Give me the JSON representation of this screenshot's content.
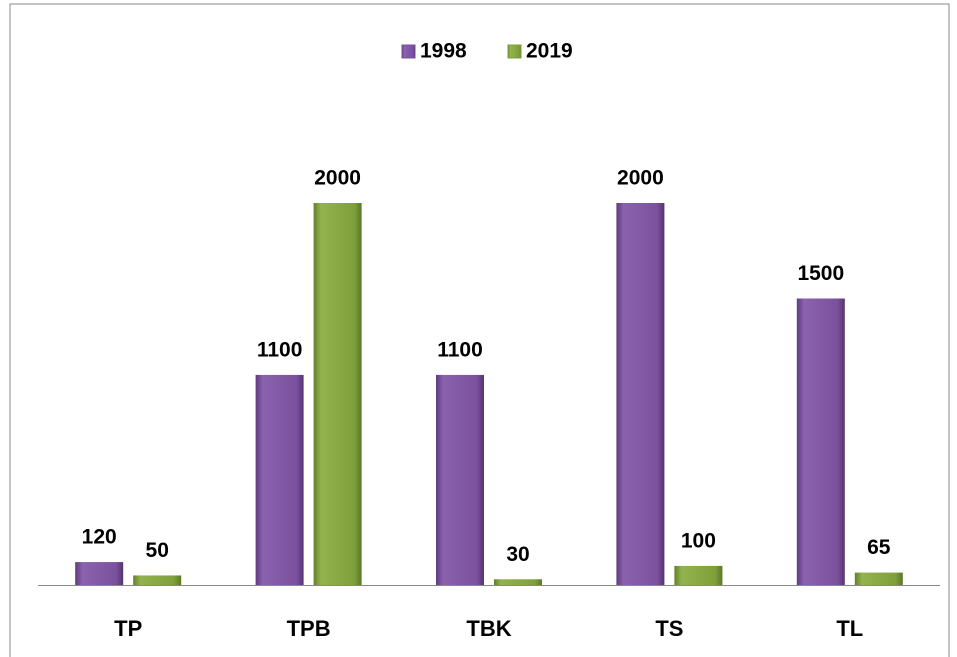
{
  "chart_data": {
    "type": "bar",
    "categories": [
      "TP",
      "TPB",
      "TBK",
      "TS",
      "TL"
    ],
    "series": [
      {
        "name": "1998",
        "color": "#7b519d",
        "values": [
          120,
          1100,
          1100,
          2000,
          1500
        ]
      },
      {
        "name": "2019",
        "color": "#7f9f3c",
        "values": [
          50,
          2000,
          30,
          100,
          65
        ]
      }
    ],
    "legend": "top"
  }
}
